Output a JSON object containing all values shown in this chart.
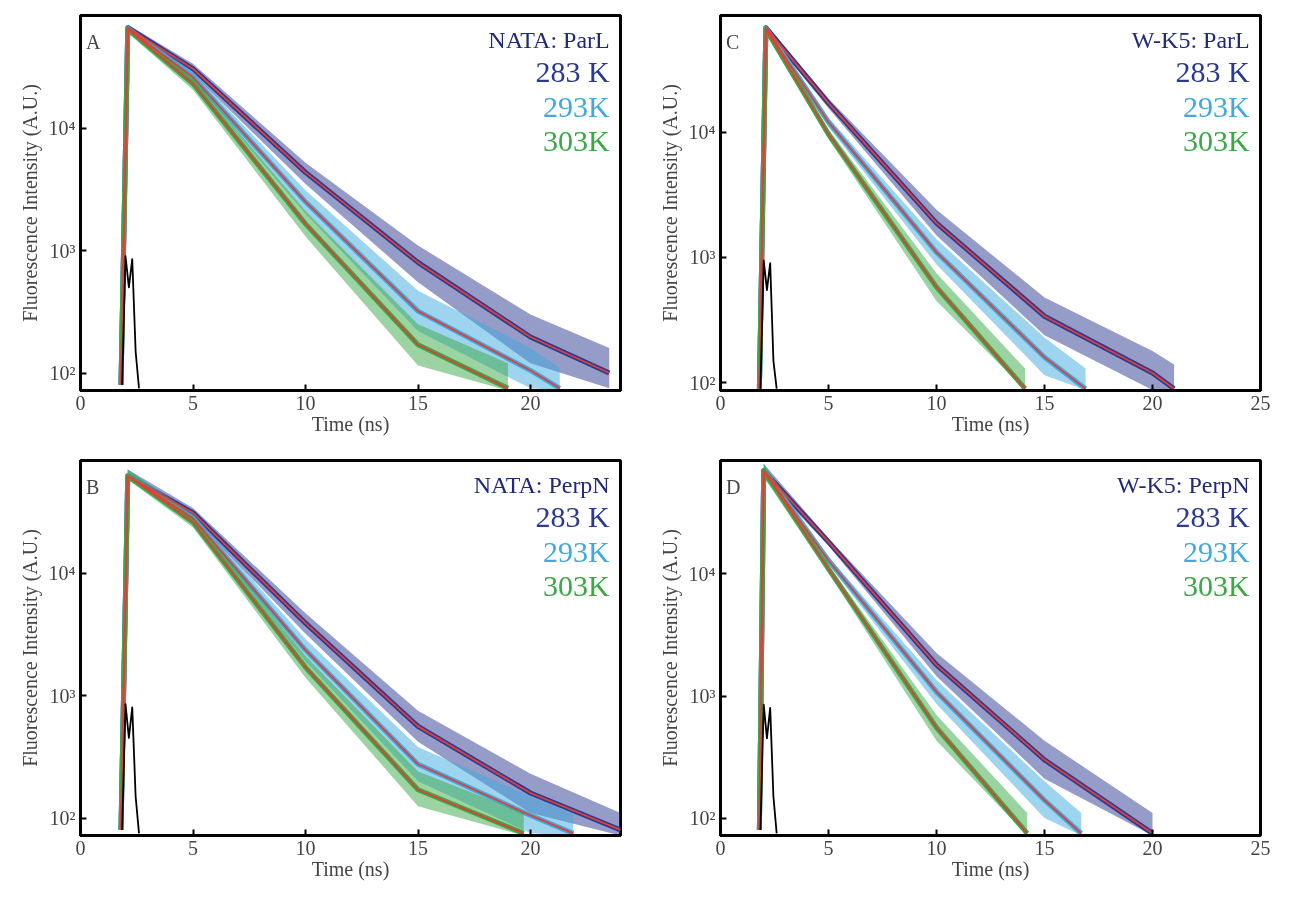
{
  "chart_data": [
    {
      "type": "line",
      "title": "NATA: ParL",
      "xlabel": "Time (ns)",
      "ylabel": "Fluorescence Intensity (A.U.)",
      "annotations": [
        "A"
      ],
      "log": true,
      "legend": "top right",
      "grid": false,
      "xlim": [
        0,
        24
      ],
      "xticks": [
        0,
        5,
        10,
        15,
        20
      ],
      "ylim": [
        72,
        83000
      ],
      "yticks": [
        {
          "value": 100,
          "label": "10²"
        },
        {
          "value": 1000,
          "label": "10³"
        },
        {
          "value": 10000,
          "label": "10⁴"
        }
      ],
      "series": [
        {
          "name": "283 K",
          "color": "#2b3990",
          "x": [
            1.8,
            2.1,
            5,
            10,
            15,
            20,
            23.5
          ],
          "values": [
            80,
            66000,
            30500,
            4350,
            800,
            197,
            100
          ],
          "lower": [
            75,
            62000,
            27500,
            3500,
            550,
            120,
            75
          ],
          "upper": [
            85,
            70000,
            33500,
            5200,
            1100,
            300,
            160
          ]
        },
        {
          "name": "293K",
          "color": "#3fa9e0",
          "x": [
            1.8,
            2.1,
            5,
            10,
            15,
            20,
            21.3
          ],
          "values": [
            80,
            65000,
            26000,
            2500,
            320,
            105,
            75
          ],
          "lower": [
            75,
            61000,
            23500,
            2000,
            220,
            75,
            72
          ],
          "upper": [
            85,
            69000,
            28500,
            3100,
            470,
            160,
            110
          ]
        },
        {
          "name": "303K",
          "color": "#39a845",
          "x": [
            1.8,
            2.1,
            5,
            10,
            15,
            19
          ],
          "values": [
            80,
            64000,
            23000,
            1650,
            170,
            75
          ],
          "lower": [
            75,
            60000,
            20500,
            1300,
            115,
            72
          ],
          "upper": [
            85,
            68000,
            25500,
            2100,
            250,
            120
          ]
        },
        {
          "color": "#e0403a",
          "x": [
            1.8,
            2.1,
            5,
            10,
            15,
            20,
            23.5
          ],
          "values": [
            80,
            66000,
            30500,
            4350,
            800,
            197,
            100
          ]
        },
        {
          "color": "#e0403a",
          "x": [
            1.8,
            2.1,
            5,
            10,
            15,
            20,
            21.3
          ],
          "values": [
            80,
            65000,
            26000,
            2500,
            320,
            105,
            75
          ]
        },
        {
          "color": "#e0403a",
          "x": [
            1.8,
            2.1,
            5,
            10,
            15,
            19
          ],
          "values": [
            80,
            64000,
            23000,
            1650,
            170,
            75
          ]
        },
        {
          "color": "#000000",
          "x": [
            1.85,
            2.0,
            2.15,
            2.3,
            2.45,
            2.6
          ],
          "values": [
            80,
            900,
            500,
            850,
            150,
            75
          ]
        }
      ]
    },
    {
      "type": "line",
      "title": "W-K5: ParL",
      "xlabel": "Time (ns)",
      "ylabel": "Fluorescence Intensity (A.U.)",
      "annotations": [
        "C"
      ],
      "log": true,
      "legend": "top right",
      "grid": false,
      "xlim": [
        0,
        25
      ],
      "xticks": [
        0,
        5,
        10,
        15,
        20,
        25
      ],
      "ylim": [
        87,
        85000
      ],
      "yticks": [
        {
          "value": 100,
          "label": "10²"
        },
        {
          "value": 1000,
          "label": "10³"
        },
        {
          "value": 10000,
          "label": "10⁴"
        }
      ],
      "series": [
        {
          "name": "283 K",
          "color": "#2b3990",
          "x": [
            1.8,
            2.1,
            5,
            10,
            15,
            20,
            21
          ],
          "values": [
            90,
            68000,
            17000,
            1880,
            340,
            120,
            90
          ],
          "lower": [
            88,
            64000,
            15500,
            1500,
            240,
            88,
            88
          ],
          "upper": [
            95,
            72000,
            18500,
            2400,
            480,
            180,
            140
          ]
        },
        {
          "name": "293K",
          "color": "#3fa9e0",
          "x": [
            1.8,
            2.1,
            5,
            10,
            15,
            16.9
          ],
          "values": [
            90,
            67000,
            12000,
            1100,
            160,
            90
          ],
          "lower": [
            88,
            63000,
            11000,
            880,
            115,
            88
          ],
          "upper": [
            95,
            71000,
            13000,
            1400,
            230,
            130
          ]
        },
        {
          "name": "303K",
          "color": "#39a845",
          "x": [
            1.8,
            2.1,
            5,
            10,
            14.1
          ],
          "values": [
            90,
            66000,
            9600,
            580,
            90
          ],
          "lower": [
            88,
            62000,
            8800,
            450,
            88
          ],
          "upper": [
            95,
            70000,
            10500,
            750,
            130
          ]
        },
        {
          "color": "#e0403a",
          "x": [
            1.8,
            2.1,
            5,
            10,
            15,
            20,
            21
          ],
          "values": [
            90,
            68000,
            17000,
            1880,
            340,
            120,
            90
          ]
        },
        {
          "color": "#e0403a",
          "x": [
            1.8,
            2.1,
            5,
            10,
            15,
            16.9
          ],
          "values": [
            90,
            67000,
            12000,
            1100,
            160,
            90
          ]
        },
        {
          "color": "#e0403a",
          "x": [
            1.8,
            2.1,
            5,
            10,
            14.1
          ],
          "values": [
            90,
            66000,
            9600,
            580,
            90
          ]
        },
        {
          "color": "#000000",
          "x": [
            1.85,
            2.0,
            2.15,
            2.3,
            2.45,
            2.6
          ],
          "values": [
            90,
            950,
            550,
            900,
            150,
            90
          ]
        }
      ]
    },
    {
      "type": "line",
      "title": "NATA: PerpN",
      "xlabel": "Time (ns)",
      "ylabel": "Fluorescence Intensity (A.U.)",
      "annotations": [
        "B"
      ],
      "log": true,
      "legend": "top right",
      "grid": false,
      "xlim": [
        0,
        24
      ],
      "xticks": [
        0,
        5,
        10,
        15,
        20
      ],
      "ylim": [
        72,
        83000
      ],
      "yticks": [
        {
          "value": 100,
          "label": "10²"
        },
        {
          "value": 1000,
          "label": "10³"
        },
        {
          "value": 10000,
          "label": "10⁴"
        }
      ],
      "series": [
        {
          "name": "283 K",
          "color": "#2b3990",
          "x": [
            1.8,
            2.1,
            5,
            10,
            15,
            20,
            24
          ],
          "values": [
            80,
            62000,
            31000,
            3900,
            560,
            160,
            80
          ],
          "lower": [
            75,
            58000,
            28000,
            3200,
            420,
            110,
            72
          ],
          "upper": [
            85,
            70000,
            34000,
            4700,
            750,
            230,
            110
          ]
        },
        {
          "name": "293K",
          "color": "#3fa9e0",
          "x": [
            1.8,
            2.1,
            5,
            10,
            15,
            20,
            21.9
          ],
          "values": [
            80,
            62000,
            28000,
            2350,
            275,
            105,
            75
          ],
          "lower": [
            75,
            58000,
            25500,
            1900,
            200,
            75,
            72
          ],
          "upper": [
            85,
            70000,
            30500,
            2900,
            380,
            150,
            110
          ]
        },
        {
          "name": "303K",
          "color": "#39a845",
          "x": [
            1.8,
            2.1,
            5,
            10,
            15,
            19.7
          ],
          "values": [
            80,
            62000,
            26000,
            1700,
            170,
            75
          ],
          "lower": [
            75,
            58000,
            23500,
            1400,
            125,
            72
          ],
          "upper": [
            85,
            70000,
            28500,
            2100,
            240,
            110
          ]
        },
        {
          "color": "#e0403a",
          "x": [
            1.8,
            2.1,
            5,
            10,
            15,
            20,
            24
          ],
          "values": [
            80,
            62000,
            31000,
            3900,
            560,
            160,
            80
          ]
        },
        {
          "color": "#e0403a",
          "x": [
            1.8,
            2.1,
            5,
            10,
            15,
            20,
            21.9
          ],
          "values": [
            80,
            62000,
            28000,
            2350,
            275,
            105,
            75
          ]
        },
        {
          "color": "#e0403a",
          "x": [
            1.8,
            2.1,
            5,
            10,
            15,
            19.7
          ],
          "values": [
            80,
            62000,
            26000,
            1700,
            170,
            75
          ]
        },
        {
          "color": "#000000",
          "x": [
            1.85,
            2.0,
            2.15,
            2.3,
            2.45,
            2.6
          ],
          "values": [
            80,
            850,
            450,
            800,
            150,
            75
          ]
        }
      ]
    },
    {
      "type": "line",
      "title": "W-K5: PerpN",
      "xlabel": "Time (ns)",
      "ylabel": "Fluorescence Intensity (A.U.)",
      "annotations": [
        "D"
      ],
      "log": true,
      "legend": "top right",
      "grid": false,
      "xlim": [
        0,
        25
      ],
      "xticks": [
        0,
        5,
        10,
        15,
        20,
        25
      ],
      "ylim": [
        72,
        85000
      ],
      "yticks": [
        {
          "value": 100,
          "label": "10²"
        },
        {
          "value": 1000,
          "label": "10³"
        },
        {
          "value": 10000,
          "label": "10⁴"
        }
      ],
      "series": [
        {
          "name": "283 K",
          "color": "#2b3990",
          "x": [
            1.8,
            2.0,
            5,
            10,
            15,
            20
          ],
          "values": [
            80,
            70000,
            18300,
            1800,
            300,
            75
          ],
          "lower": [
            75,
            62000,
            17000,
            1450,
            210,
            72
          ],
          "upper": [
            85,
            80000,
            19600,
            2250,
            430,
            110
          ]
        },
        {
          "name": "293K",
          "color": "#3fa9e0",
          "x": [
            1.8,
            2.0,
            5,
            10,
            15,
            16.7
          ],
          "values": [
            80,
            70000,
            12900,
            1080,
            140,
            75
          ],
          "lower": [
            75,
            62000,
            12000,
            860,
            100,
            72
          ],
          "upper": [
            85,
            80000,
            13800,
            1350,
            200,
            110
          ]
        },
        {
          "name": "303K",
          "color": "#39a845",
          "x": [
            1.8,
            2.0,
            5,
            10,
            14.2
          ],
          "values": [
            80,
            70000,
            11000,
            550,
            75
          ],
          "lower": [
            75,
            62000,
            10200,
            430,
            72
          ],
          "upper": [
            85,
            80000,
            11800,
            700,
            110
          ]
        },
        {
          "color": "#e0403a",
          "x": [
            1.8,
            2.0,
            5,
            10,
            15,
            20
          ],
          "values": [
            80,
            70000,
            18300,
            1800,
            300,
            75
          ]
        },
        {
          "color": "#e0403a",
          "x": [
            1.8,
            2.0,
            5,
            10,
            15,
            16.7
          ],
          "values": [
            80,
            70000,
            12900,
            1080,
            140,
            75
          ]
        },
        {
          "color": "#e0403a",
          "x": [
            1.8,
            2.0,
            5,
            10,
            14.2
          ],
          "values": [
            80,
            70000,
            11000,
            550,
            75
          ]
        },
        {
          "color": "#000000",
          "x": [
            1.85,
            2.0,
            2.15,
            2.3,
            2.45,
            2.6
          ],
          "values": [
            80,
            850,
            450,
            800,
            150,
            75
          ]
        }
      ]
    }
  ]
}
